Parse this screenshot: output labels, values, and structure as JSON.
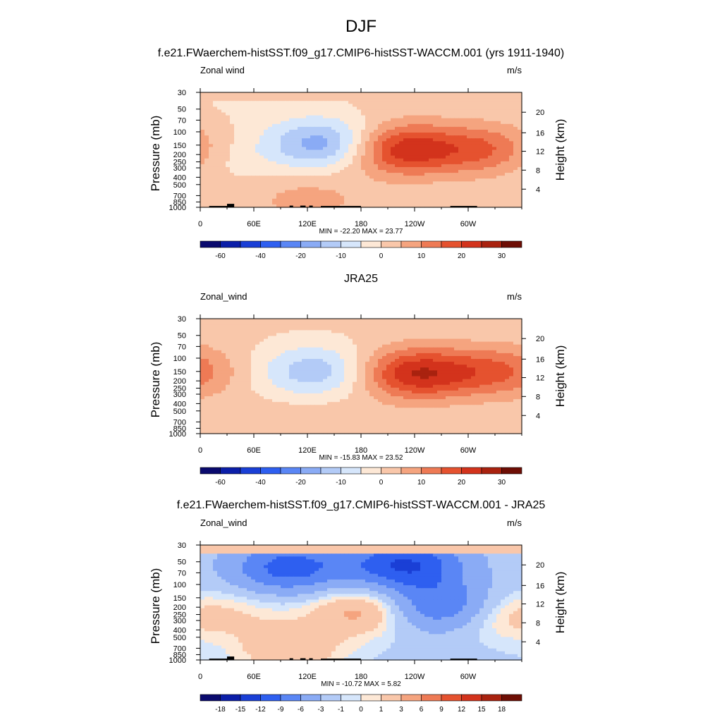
{
  "figure": {
    "title": "DJF"
  },
  "colors": {
    "main_scale": [
      "#0a0a6e",
      "#0b1ea8",
      "#1a3fd6",
      "#2e5ff0",
      "#5a86f5",
      "#8aabf5",
      "#b3cbf7",
      "#d6e6fb",
      "#fde8d6",
      "#f9c7aa",
      "#f5a47f",
      "#ee7a55",
      "#e5522f",
      "#d3331c",
      "#a9220f",
      "#6e0e05"
    ],
    "diff_scale": [
      "#0a0a6e",
      "#0b1ea8",
      "#1a3fd6",
      "#2e5ff0",
      "#5a86f5",
      "#8aabf5",
      "#b3cbf7",
      "#d6e6fb",
      "#fde8d6",
      "#f9c7aa",
      "#f5a47f",
      "#ee7a55",
      "#e5522f",
      "#d3331c",
      "#a9220f",
      "#6e0e05"
    ]
  },
  "chart_data": [
    {
      "type": "heatmap",
      "title": "f.e21.FWaerchem-histSST.f09_g17.CMIP6-histSST-WACCM.001 (yrs 1911-1940)",
      "left_string": "Zonal wind",
      "right_string": "m/s",
      "ylabel": "Pressure (mb)",
      "ylabel_right": "Height (km)",
      "x_ticklabels": [
        "0",
        "60E",
        "120E",
        "180",
        "120W",
        "60W"
      ],
      "y_ticklabels": [
        "30",
        "50",
        "70",
        "100",
        "150",
        "200",
        "250",
        "300",
        "400",
        "500",
        "700",
        "850",
        "1000"
      ],
      "y_right_ticklabels": [
        "20",
        "16",
        "12",
        "8",
        "4"
      ],
      "stats": "MIN = -22.20  MAX =  23.77",
      "colorbar_labels": [
        "-60",
        "-40",
        "-20",
        "-10",
        "0",
        "10",
        "20",
        "30"
      ],
      "fields": [
        {
          "lon": 20,
          "p": 210,
          "value": -5
        },
        {
          "lon": 140,
          "p": 145,
          "value": -20
        },
        {
          "lon": 120,
          "p": 800,
          "value": 6
        },
        {
          "lon": 225,
          "p": 170,
          "value": 23.8
        },
        {
          "lon": 325,
          "p": 175,
          "value": 15
        },
        {
          "lon": 60,
          "p": 40,
          "value": -2
        }
      ]
    },
    {
      "type": "heatmap",
      "title": "JRA25",
      "left_string": "Zonal_wind",
      "right_string": "m/s",
      "ylabel": "Pressure (mb)",
      "ylabel_right": "Height (km)",
      "x_ticklabels": [
        "0",
        "60E",
        "120E",
        "180",
        "120W",
        "60W"
      ],
      "y_ticklabels": [
        "30",
        "50",
        "70",
        "100",
        "150",
        "200",
        "250",
        "300",
        "400",
        "500",
        "700",
        "850",
        "1000"
      ],
      "y_right_ticklabels": [
        "20",
        "16",
        "12",
        "8",
        "4"
      ],
      "stats": "MIN = -15.83  MAX =  23.52",
      "colorbar_labels": [
        "-60",
        "-40",
        "-20",
        "-10",
        "0",
        "10",
        "20",
        "30"
      ],
      "fields": [
        {
          "lon": 130,
          "p": 150,
          "value": -15
        },
        {
          "lon": 120,
          "p": 750,
          "value": 3
        },
        {
          "lon": 240,
          "p": 160,
          "value": 23.5
        },
        {
          "lon": 335,
          "p": 150,
          "value": 14
        }
      ]
    },
    {
      "type": "heatmap",
      "title": "f.e21.FWaerchem-histSST.f09_g17.CMIP6-histSST-WACCM.001 - JRA25",
      "left_string": "Zonal_wind",
      "right_string": "m/s",
      "ylabel": "Pressure (mb)",
      "ylabel_right": "Height (km)",
      "x_ticklabels": [
        "0",
        "60E",
        "120E",
        "180",
        "120W",
        "60W"
      ],
      "y_ticklabels": [
        "30",
        "50",
        "70",
        "100",
        "150",
        "200",
        "250",
        "300",
        "400",
        "500",
        "700",
        "850",
        "1000"
      ],
      "y_right_ticklabels": [
        "20",
        "16",
        "12",
        "8",
        "4"
      ],
      "stats": "MIN = -10.72  MAX =   5.82",
      "colorbar_labels": [
        "-18",
        "-15",
        "-12",
        "-9",
        "-6",
        "-3",
        "-1",
        "0",
        "1",
        "3",
        "6",
        "9",
        "12",
        "15",
        "18"
      ],
      "fields": [
        {
          "lon": 100,
          "p": 60,
          "value": -9
        },
        {
          "lon": 230,
          "p": 55,
          "value": -10.7
        },
        {
          "lon": 270,
          "p": 200,
          "value": -9
        },
        {
          "lon": 185,
          "p": 220,
          "value": 5.8
        },
        {
          "lon": 320,
          "p": 250,
          "value": 4
        },
        {
          "lon": 100,
          "p": 750,
          "value": 4
        },
        {
          "lon": 40,
          "p": 250,
          "value": 2
        }
      ]
    }
  ]
}
